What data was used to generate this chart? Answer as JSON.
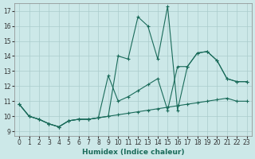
{
  "xlabel": "Humidex (Indice chaleur)",
  "xlim": [
    -0.5,
    23.5
  ],
  "ylim": [
    8.7,
    17.5
  ],
  "xticks": [
    0,
    1,
    2,
    3,
    4,
    5,
    6,
    7,
    8,
    9,
    10,
    11,
    12,
    13,
    14,
    15,
    16,
    17,
    18,
    19,
    20,
    21,
    22,
    23
  ],
  "yticks": [
    9,
    10,
    11,
    12,
    13,
    14,
    15,
    16,
    17
  ],
  "background_color": "#cce8e8",
  "grid_color": "#aacccc",
  "line_color": "#1a6b5a",
  "series": [
    {
      "x": [
        0,
        1,
        2,
        3,
        4,
        5,
        6,
        7,
        8,
        9,
        10,
        11,
        12,
        13,
        14,
        15,
        16,
        17,
        18,
        19,
        20,
        21,
        22,
        23
      ],
      "y": [
        10.8,
        10.0,
        9.8,
        9.5,
        9.3,
        9.7,
        9.8,
        9.8,
        9.9,
        10.0,
        10.1,
        10.2,
        10.3,
        10.4,
        10.5,
        10.6,
        10.7,
        10.8,
        10.9,
        11.0,
        11.1,
        11.2,
        11.0,
        11.0
      ]
    },
    {
      "x": [
        0,
        1,
        2,
        3,
        4,
        5,
        6,
        7,
        8,
        9,
        10,
        11,
        12,
        13,
        14,
        15,
        16,
        17,
        18,
        19,
        20,
        21,
        22,
        23
      ],
      "y": [
        10.8,
        10.0,
        9.8,
        9.5,
        9.3,
        9.7,
        9.8,
        9.8,
        9.9,
        12.7,
        11.0,
        11.3,
        11.7,
        12.1,
        12.5,
        10.4,
        13.3,
        13.3,
        14.2,
        14.3,
        13.7,
        12.5,
        12.3,
        12.3
      ]
    },
    {
      "x": [
        0,
        1,
        2,
        3,
        4,
        5,
        6,
        7,
        8,
        9,
        10,
        11,
        12,
        13,
        14,
        15,
        16,
        17,
        18,
        19,
        20,
        21,
        22,
        23
      ],
      "y": [
        10.8,
        10.0,
        9.8,
        9.5,
        9.3,
        9.7,
        9.8,
        9.8,
        9.9,
        10.0,
        14.0,
        13.8,
        16.6,
        16.0,
        13.8,
        17.3,
        10.4,
        13.3,
        14.2,
        14.3,
        13.7,
        12.5,
        12.3,
        12.3
      ]
    }
  ]
}
